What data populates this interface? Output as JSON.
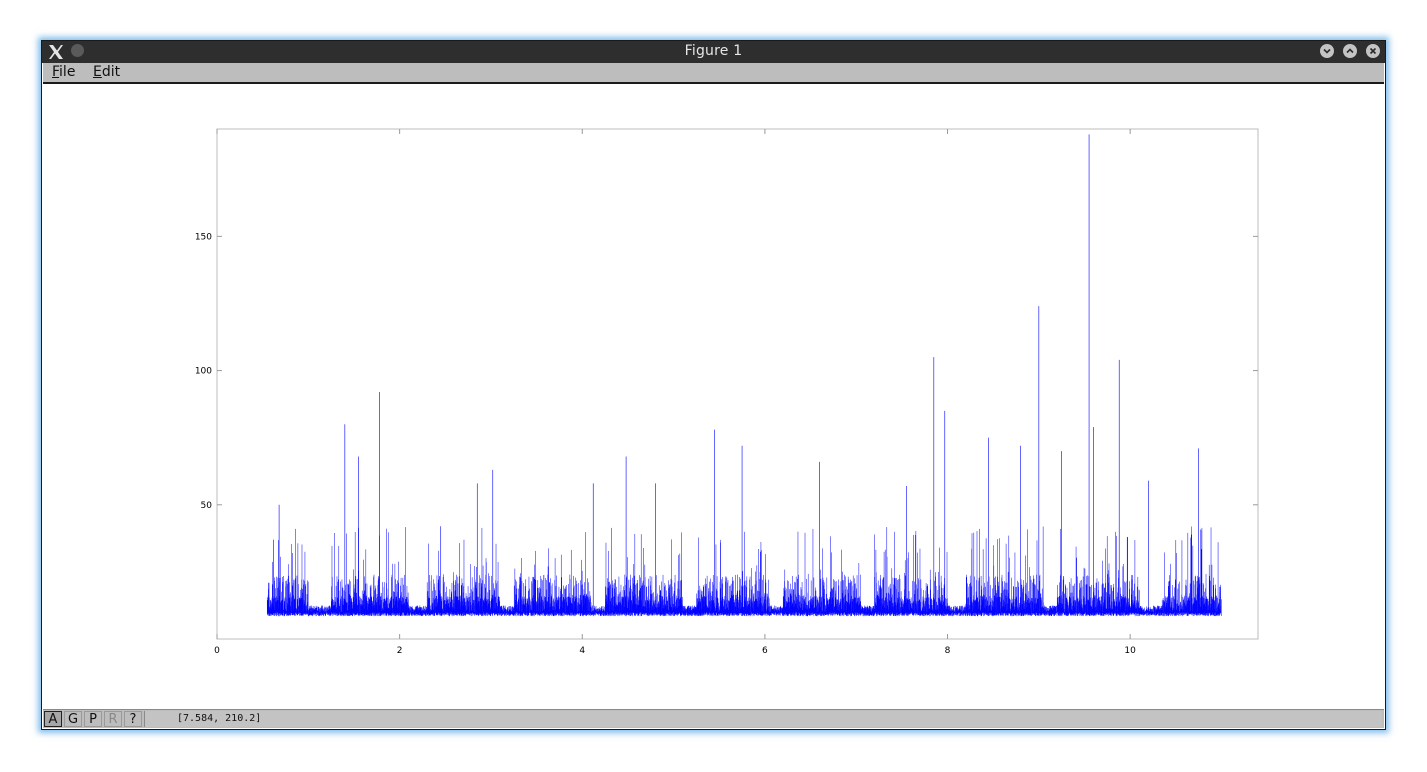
{
  "window": {
    "title": "Figure 1",
    "buttons": [
      "minimize",
      "maximize",
      "close"
    ]
  },
  "menu": [
    {
      "label": "File",
      "mnemonic": "F"
    },
    {
      "label": "Edit",
      "mnemonic": "E"
    }
  ],
  "toolbar": {
    "buttons": [
      {
        "label": "A",
        "state": "active"
      },
      {
        "label": "G",
        "state": "normal"
      },
      {
        "label": "P",
        "state": "normal"
      },
      {
        "label": "R",
        "state": "disabled"
      },
      {
        "label": "?",
        "state": "normal"
      }
    ],
    "coordinates": "[7.584, 210.2]"
  },
  "colors": {
    "series": "#0000ff",
    "titlebar": "#2e2e2e",
    "menubar": "#bdbdbd",
    "window_glow": "#5aaae6"
  },
  "chart_data": {
    "type": "line",
    "title": "",
    "xlabel": "",
    "ylabel": "",
    "xlim": [
      0,
      11.4
    ],
    "ylim": [
      0,
      190
    ],
    "xticks": [
      0,
      2,
      4,
      6,
      8,
      10
    ],
    "yticks": [
      50,
      100,
      150
    ],
    "grid": false,
    "series": [
      {
        "color": "#0000ff",
        "x_range": [
          0.55,
          11.0
        ],
        "baseline": 10,
        "peaks": [
          {
            "x": 0.62,
            "y": 37
          },
          {
            "x": 0.68,
            "y": 50
          },
          {
            "x": 1.4,
            "y": 80
          },
          {
            "x": 1.55,
            "y": 68
          },
          {
            "x": 1.78,
            "y": 92
          },
          {
            "x": 2.45,
            "y": 42
          },
          {
            "x": 2.85,
            "y": 58
          },
          {
            "x": 3.02,
            "y": 63
          },
          {
            "x": 4.12,
            "y": 58
          },
          {
            "x": 4.48,
            "y": 68
          },
          {
            "x": 4.8,
            "y": 58
          },
          {
            "x": 5.45,
            "y": 78
          },
          {
            "x": 5.75,
            "y": 72
          },
          {
            "x": 6.6,
            "y": 66
          },
          {
            "x": 7.55,
            "y": 57
          },
          {
            "x": 7.85,
            "y": 105
          },
          {
            "x": 7.97,
            "y": 85
          },
          {
            "x": 8.45,
            "y": 75
          },
          {
            "x": 8.8,
            "y": 72
          },
          {
            "x": 9.0,
            "y": 124
          },
          {
            "x": 9.25,
            "y": 70
          },
          {
            "x": 9.55,
            "y": 188
          },
          {
            "x": 9.6,
            "y": 79
          },
          {
            "x": 9.88,
            "y": 104
          },
          {
            "x": 10.2,
            "y": 59
          },
          {
            "x": 10.75,
            "y": 71
          }
        ],
        "quiet_gaps": [
          {
            "from": 1.0,
            "to": 1.25
          },
          {
            "from": 2.1,
            "to": 2.3
          },
          {
            "from": 3.1,
            "to": 3.25
          },
          {
            "from": 4.1,
            "to": 4.25
          },
          {
            "from": 5.1,
            "to": 5.25
          },
          {
            "from": 6.05,
            "to": 6.2
          },
          {
            "from": 7.05,
            "to": 7.2
          },
          {
            "from": 8.0,
            "to": 8.2
          },
          {
            "from": 9.05,
            "to": 9.2
          },
          {
            "from": 10.1,
            "to": 10.35
          }
        ]
      }
    ]
  }
}
